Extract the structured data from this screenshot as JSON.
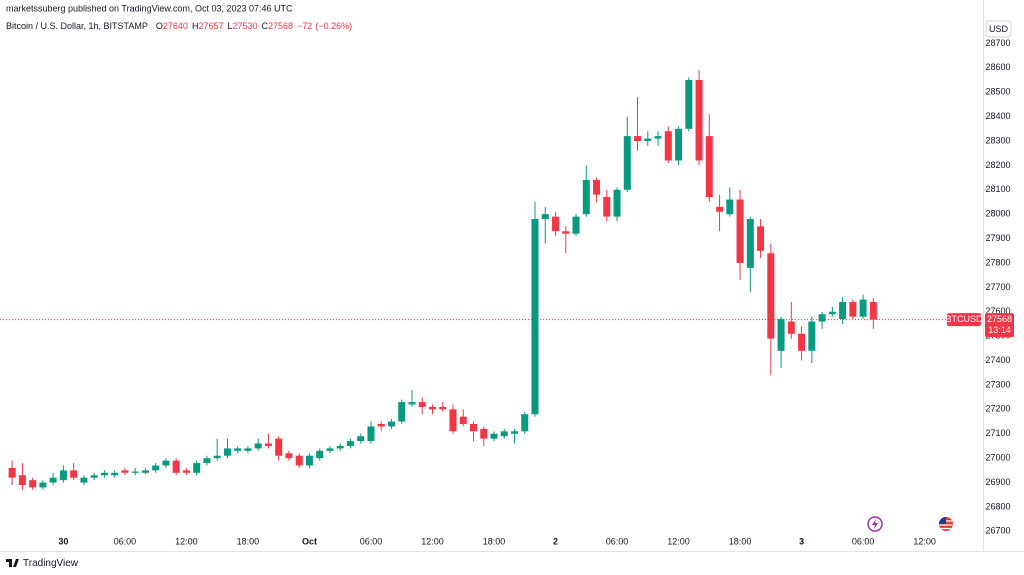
{
  "header": {
    "published": "marketssuberg published on TradingView.com, Oct 03, 2023 07:46 UTC",
    "brand": "TradingView"
  },
  "chart_data": {
    "type": "candlestick",
    "title": "Bitcoin / U.S. Dollar, 1h, BITSTAMP",
    "ohlc_labels": [
      "O",
      "H",
      "L",
      "C"
    ],
    "change": {
      "value": -72,
      "label": "−72"
    },
    "change_pct": {
      "value": -0.26,
      "label": "(−0.26%)"
    },
    "currency": "USD",
    "symbol": "BTCUSD",
    "countdown": "13:14",
    "up_color": "#089981",
    "down_color": "#f23645",
    "grid": false,
    "categories": [
      null,
      null,
      null,
      null,
      null,
      "30",
      null,
      null,
      null,
      null,
      null,
      "06:00",
      null,
      null,
      null,
      null,
      null,
      "12:00",
      null,
      null,
      null,
      null,
      null,
      "18:00",
      null,
      null,
      null,
      null,
      null,
      "Oct",
      null,
      null,
      null,
      null,
      null,
      "06:00",
      null,
      null,
      null,
      null,
      null,
      "12:00",
      null,
      null,
      null,
      null,
      null,
      "18:00",
      null,
      null,
      null,
      null,
      null,
      "2",
      null,
      null,
      null,
      null,
      null,
      "06:00",
      null,
      null,
      null,
      null,
      null,
      "12:00",
      null,
      null,
      null,
      null,
      null,
      "18:00",
      null,
      null,
      null,
      null,
      null,
      "3",
      null,
      null,
      null,
      null,
      null,
      "06:00",
      null,
      null,
      null,
      null,
      null,
      "12:00",
      null,
      null,
      null,
      null,
      null
    ],
    "open": [
      26960,
      26930,
      26910,
      26880,
      26900,
      26910,
      26950,
      26900,
      26920,
      26930,
      26930,
      26950,
      26940,
      26940,
      26950,
      26970,
      26990,
      26950,
      26940,
      26980,
      27000,
      27010,
      27030,
      27030,
      27040,
      27060,
      27080,
      27020,
      27010,
      26970,
      27000,
      27030,
      27040,
      27050,
      27070,
      27070,
      27140,
      27130,
      27150,
      27220,
      27230,
      27210,
      27210,
      27200,
      27170,
      27140,
      27120,
      27080,
      27090,
      27100,
      27110,
      27180,
      27980,
      27990,
      27930,
      27920,
      28000,
      28140,
      28070,
      27990,
      28100,
      28320,
      28300,
      28310,
      28340,
      28220,
      28350,
      28550,
      28320,
      28030,
      28000,
      28060,
      27780,
      27950,
      27840,
      27440,
      27560,
      27510,
      27440,
      27560,
      27590,
      27570,
      27640,
      27580,
      27640,
      null,
      null,
      null,
      null,
      null,
      null,
      null,
      null,
      null,
      null
    ],
    "high": [
      26990,
      26980,
      26920,
      26910,
      26940,
      26970,
      26980,
      26930,
      26940,
      26950,
      26950,
      26960,
      26960,
      26960,
      26980,
      27000,
      27000,
      26960,
      26990,
      27010,
      27080,
      27080,
      27050,
      27050,
      27080,
      27100,
      27090,
      27030,
      27020,
      27020,
      27040,
      27050,
      27060,
      27080,
      27100,
      27150,
      27150,
      27160,
      27240,
      27280,
      27250,
      27220,
      27230,
      27220,
      27200,
      27150,
      27130,
      27110,
      27120,
      27120,
      27190,
      28050,
      28030,
      28010,
      27950,
      28000,
      28200,
      28150,
      28100,
      28110,
      28400,
      28480,
      28340,
      28340,
      28360,
      28360,
      28560,
      28590,
      28410,
      28080,
      28110,
      28100,
      27990,
      27980,
      27880,
      27580,
      27640,
      27540,
      27580,
      27600,
      27620,
      27660,
      27650,
      27670,
      27657,
      null,
      null,
      null,
      null,
      null,
      null,
      null,
      null,
      null,
      null
    ],
    "low": [
      26890,
      26870,
      26870,
      26870,
      26890,
      26900,
      26910,
      26890,
      26910,
      26920,
      26920,
      26930,
      26930,
      26935,
      26940,
      26960,
      26930,
      26930,
      26930,
      26970,
      26990,
      27000,
      27020,
      27020,
      27030,
      27040,
      26990,
      26990,
      26960,
      26960,
      26990,
      27020,
      27030,
      27040,
      27060,
      27060,
      27110,
      27120,
      27140,
      27210,
      27180,
      27180,
      27190,
      27100,
      27130,
      27070,
      27050,
      27070,
      27080,
      27060,
      27100,
      27170,
      27880,
      27910,
      27840,
      27910,
      27990,
      28050,
      27970,
      27970,
      28090,
      28260,
      28280,
      28280,
      28210,
      28200,
      28340,
      28200,
      28050,
      27930,
      27990,
      27730,
      27680,
      27820,
      27340,
      27370,
      27490,
      27400,
      27390,
      27530,
      27580,
      27550,
      27570,
      27570,
      27530,
      null,
      null,
      null,
      null,
      null,
      null,
      null,
      null,
      null,
      null
    ],
    "close": [
      26920,
      26890,
      26880,
      26900,
      26920,
      26950,
      26920,
      26920,
      26930,
      26940,
      26940,
      26940,
      26945,
      26950,
      26970,
      26990,
      26940,
      26940,
      26980,
      27000,
      27010,
      27040,
      27040,
      27040,
      27060,
      27050,
      27010,
      27000,
      26970,
      27010,
      27030,
      27040,
      27050,
      27070,
      27090,
      27130,
      27130,
      27150,
      27230,
      27230,
      27210,
      27200,
      27200,
      27110,
      27140,
      27110,
      27080,
      27100,
      27110,
      27110,
      27180,
      27980,
      28000,
      27930,
      27920,
      27990,
      28140,
      28080,
      27990,
      28100,
      28320,
      28300,
      28310,
      28320,
      28220,
      28350,
      28550,
      28220,
      28070,
      28010,
      28060,
      27800,
      27980,
      27850,
      27490,
      27570,
      27510,
      27440,
      27560,
      27590,
      27600,
      27640,
      27580,
      27650,
      27568,
      null,
      null,
      null,
      null,
      null,
      null,
      null,
      null,
      null,
      null
    ],
    "ylim": [
      26640,
      28800
    ],
    "yticks": [
      26700,
      26800,
      26900,
      27000,
      27100,
      27200,
      27300,
      27400,
      27500,
      27600,
      27700,
      27800,
      27900,
      28000,
      28100,
      28200,
      28300,
      28400,
      28500,
      28600,
      28700
    ]
  }
}
